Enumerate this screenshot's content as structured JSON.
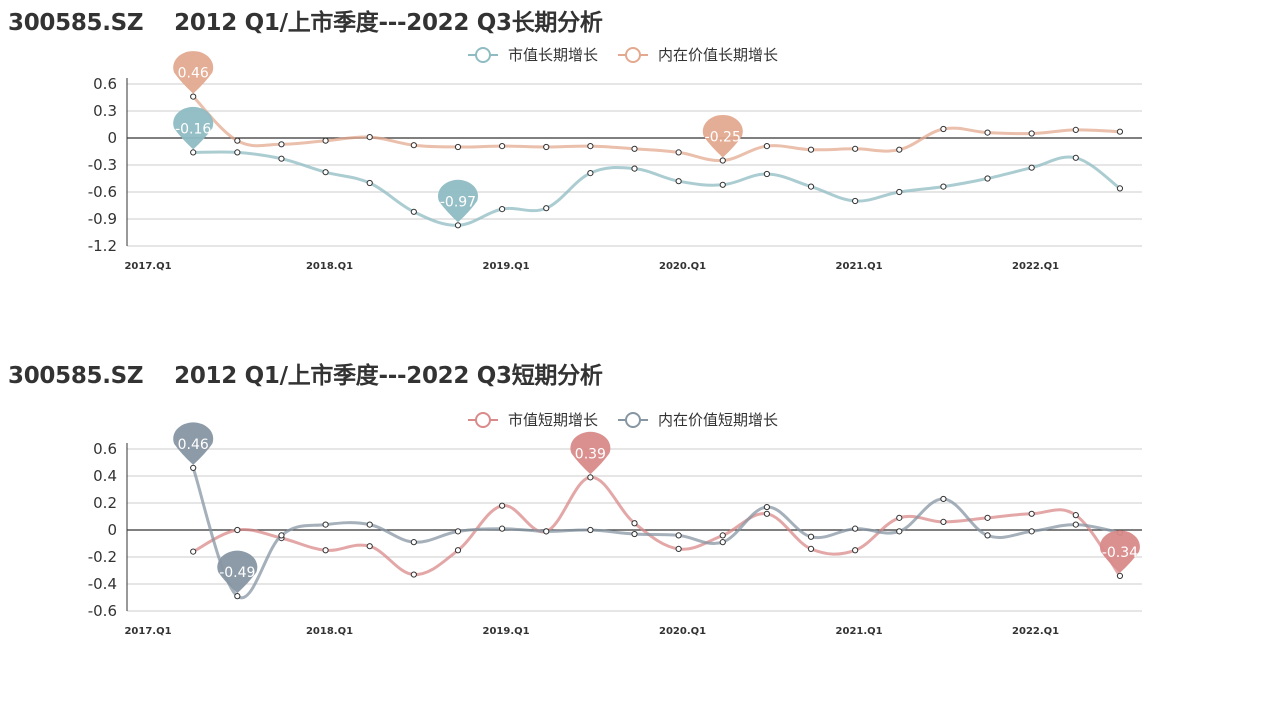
{
  "charts": [
    {
      "title": "300585.SZ    2012 Q1/上市季度---2022 Q3长期分析"
    },
    {
      "title": "300585.SZ    2012 Q1/上市季度---2022 Q3短期分析"
    }
  ],
  "chart_data": [
    {
      "type": "line",
      "title": "300585.SZ    2012 Q1/上市季度---2022 Q3长期分析",
      "x_tick_labels": [
        "2017.Q1",
        "2018.Q1",
        "2019.Q1",
        "2020.Q1",
        "2021.Q1",
        "2022.Q1"
      ],
      "x": [
        "2017.Q2",
        "2017.Q3",
        "2017.Q4",
        "2018.Q1",
        "2018.Q2",
        "2018.Q3",
        "2018.Q4",
        "2019.Q1",
        "2019.Q2",
        "2019.Q3",
        "2019.Q4",
        "2020.Q1",
        "2020.Q2",
        "2020.Q3",
        "2020.Q4",
        "2021.Q1",
        "2021.Q2",
        "2021.Q3",
        "2021.Q4",
        "2022.Q1",
        "2022.Q2",
        "2022.Q3"
      ],
      "ylim": [
        -1.2,
        0.6
      ],
      "y_ticks": [
        0.6,
        0.3,
        0,
        -0.3,
        -0.6,
        -0.9,
        -1.2
      ],
      "grid": true,
      "legend_position": "top-center",
      "series": [
        {
          "name": "市值长期增长",
          "color": "#8fbcc3",
          "values": [
            -0.16,
            -0.16,
            -0.23,
            -0.38,
            -0.5,
            -0.82,
            -0.97,
            -0.79,
            -0.78,
            -0.39,
            -0.34,
            -0.48,
            -0.52,
            -0.4,
            -0.54,
            -0.7,
            -0.6,
            -0.54,
            -0.45,
            -0.33,
            -0.22,
            -0.56
          ],
          "markers": [
            {
              "label": "-0.16",
              "index": 0
            },
            {
              "label": "-0.97",
              "index": 6
            }
          ]
        },
        {
          "name": "内在价值长期增长",
          "color": "#e3a98f",
          "values": [
            0.46,
            -0.03,
            -0.07,
            -0.03,
            0.01,
            -0.08,
            -0.1,
            -0.09,
            -0.1,
            -0.09,
            -0.12,
            -0.16,
            -0.25,
            -0.09,
            -0.13,
            -0.12,
            -0.13,
            0.1,
            0.06,
            0.05,
            0.09,
            0.07
          ],
          "markers": [
            {
              "label": "0.46",
              "index": 0
            },
            {
              "label": "-0.25",
              "index": 12
            }
          ]
        }
      ]
    },
    {
      "type": "line",
      "title": "300585.SZ    2012 Q1/上市季度---2022 Q3短期分析",
      "x_tick_labels": [
        "2017.Q1",
        "2018.Q1",
        "2019.Q1",
        "2020.Q1",
        "2021.Q1",
        "2022.Q1"
      ],
      "x": [
        "2017.Q2",
        "2017.Q3",
        "2017.Q4",
        "2018.Q1",
        "2018.Q2",
        "2018.Q3",
        "2018.Q4",
        "2019.Q1",
        "2019.Q2",
        "2019.Q3",
        "2019.Q4",
        "2020.Q1",
        "2020.Q2",
        "2020.Q3",
        "2020.Q4",
        "2021.Q1",
        "2021.Q2",
        "2021.Q3",
        "2021.Q4",
        "2022.Q1",
        "2022.Q2",
        "2022.Q3"
      ],
      "ylim": [
        -0.6,
        0.6
      ],
      "y_ticks": [
        0.6,
        0.4,
        0.2,
        0,
        -0.2,
        -0.4,
        -0.6
      ],
      "grid": true,
      "legend_position": "top-center",
      "series": [
        {
          "name": "市值短期增长",
          "color": "#d98a8a",
          "values": [
            -0.16,
            0.0,
            -0.06,
            -0.15,
            -0.12,
            -0.33,
            -0.15,
            0.18,
            -0.01,
            0.39,
            0.05,
            -0.14,
            -0.04,
            0.12,
            -0.14,
            -0.15,
            0.09,
            0.06,
            0.09,
            0.12,
            0.11,
            -0.34
          ],
          "markers": [
            {
              "label": "0.39",
              "index": 9
            },
            {
              "label": "-0.34",
              "index": 21
            }
          ]
        },
        {
          "name": "内在价值短期增长",
          "color": "#8796a3",
          "values": [
            0.46,
            -0.49,
            -0.04,
            0.04,
            0.04,
            -0.09,
            -0.01,
            0.01,
            -0.01,
            0.0,
            -0.03,
            -0.04,
            -0.09,
            0.17,
            -0.05,
            0.01,
            -0.01,
            0.23,
            -0.04,
            -0.01,
            0.04,
            -0.02
          ],
          "markers": [
            {
              "label": "0.46",
              "index": 0
            },
            {
              "label": "-0.49",
              "index": 1
            }
          ]
        }
      ]
    }
  ]
}
